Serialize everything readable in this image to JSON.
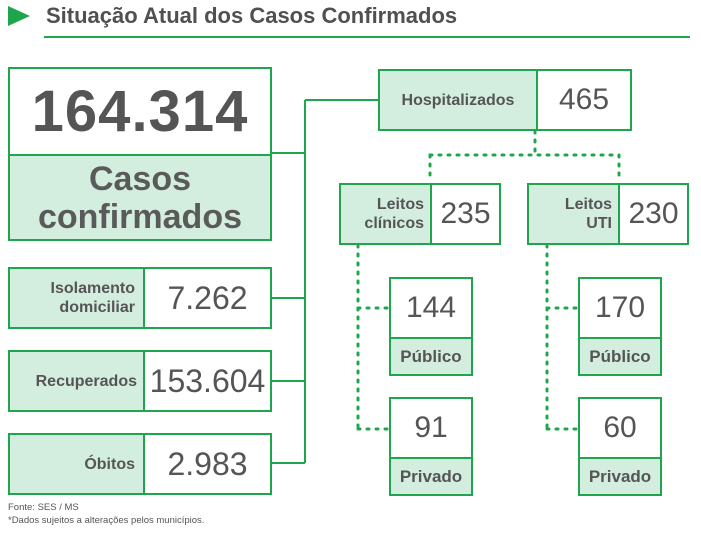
{
  "header": {
    "title": "Situação Atual dos Casos Confirmados"
  },
  "main_total": {
    "value": "164.314",
    "label_line1": "Casos",
    "label_line2": "confirmados"
  },
  "left_items": [
    {
      "label_line1": "Isolamento",
      "label_line2": "domiciliar",
      "value": "7.262"
    },
    {
      "label_line1": "Recuperados",
      "label_line2": "",
      "value": "153.604"
    },
    {
      "label_line1": "Óbitos",
      "label_line2": "",
      "value": "2.983"
    }
  ],
  "hospitalized": {
    "label": "Hospitalizados",
    "value": "465"
  },
  "beds": {
    "clinical": {
      "label_line1": "Leitos",
      "label_line2": "clínicos",
      "value": "235",
      "public": {
        "value": "144",
        "label": "Público"
      },
      "private": {
        "value": "91",
        "label": "Privado"
      }
    },
    "icu": {
      "label_line1": "Leitos",
      "label_line2": "UTI",
      "value": "230",
      "public": {
        "value": "170",
        "label": "Público"
      },
      "private": {
        "value": "60",
        "label": "Privado"
      }
    }
  },
  "footer": {
    "source": "Fonte: SES / MS",
    "note": "*Dados sujeitos a alterações pelos municípios."
  },
  "colors": {
    "accent": "#1fa64d",
    "fill": "#d3eedf",
    "text": "#555555"
  }
}
